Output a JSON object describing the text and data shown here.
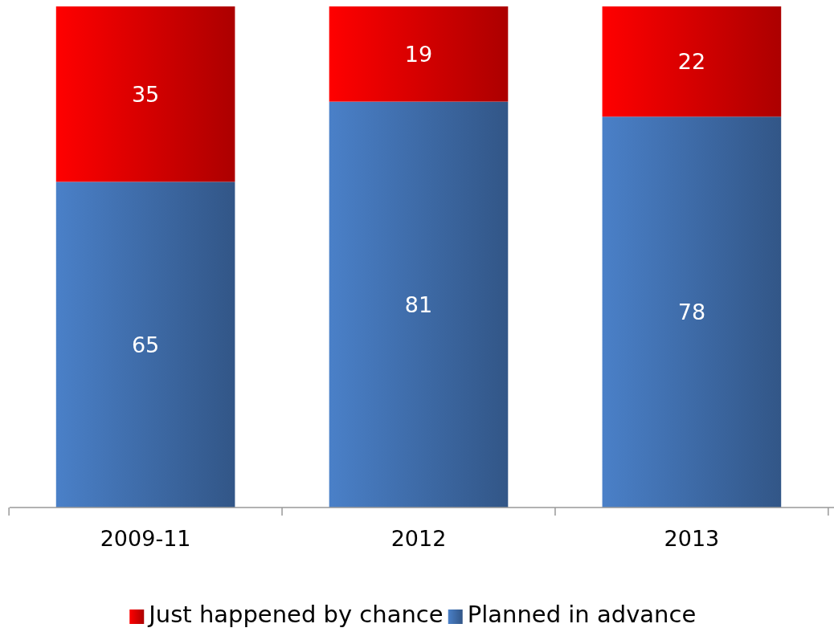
{
  "chart_data": {
    "type": "bar",
    "stacked": true,
    "categories": [
      "2009-11",
      "2012",
      "2013"
    ],
    "series": [
      {
        "name": "Planned in advance",
        "color": "#4a80c8",
        "values": [
          65,
          81,
          78
        ]
      },
      {
        "name": "Just happened by chance",
        "color": "#ff0000",
        "values": [
          35,
          19,
          22
        ]
      }
    ],
    "data_labels": true,
    "legend": "bottom",
    "grid": false
  }
}
